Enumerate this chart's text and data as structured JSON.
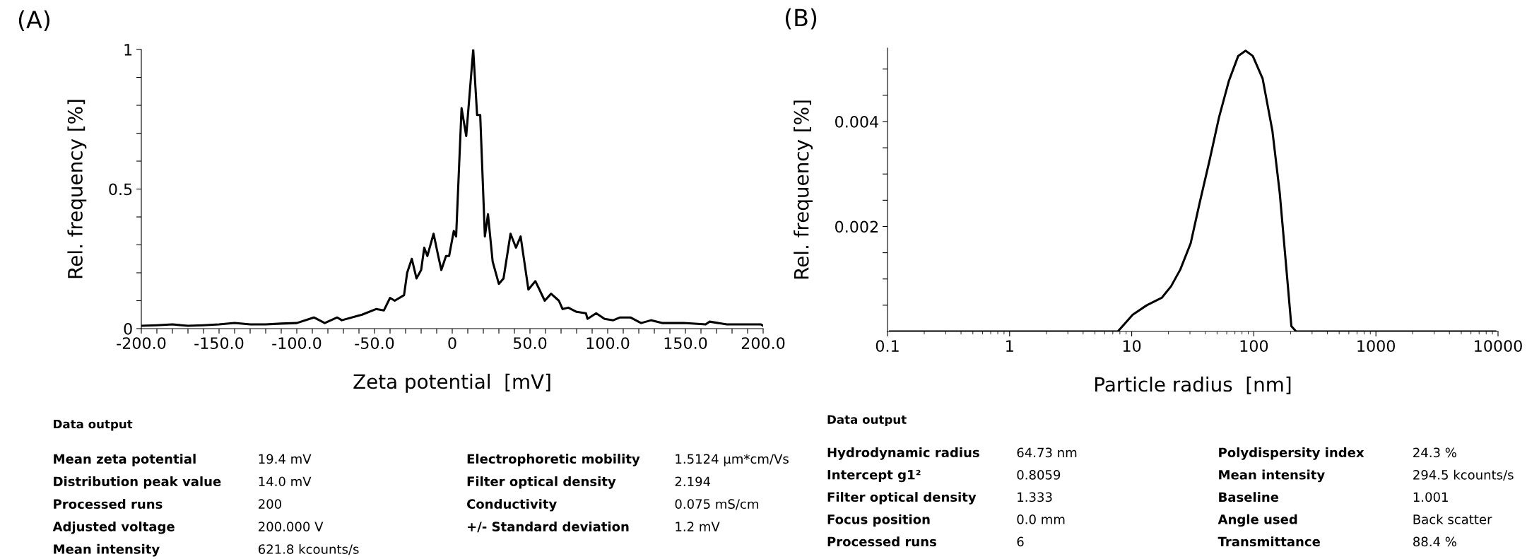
{
  "chart_data": [
    {
      "type": "line",
      "title": "(A)",
      "xlabel": "Zeta potential  [mV]",
      "ylabel": "Rel. frequency [%]",
      "series": [
        {
          "color": "#000000",
          "x": [
            -200,
            -190,
            -180,
            -170,
            -160,
            -150,
            -140,
            -130,
            -120,
            -110,
            -100,
            -89,
            -82,
            -74,
            -71,
            -58,
            -49,
            -44,
            -40,
            -37,
            -31,
            -29,
            -26,
            -23,
            -20,
            -18,
            -16,
            -14,
            -12,
            -9,
            -7,
            -4,
            -2,
            1,
            2.5,
            6,
            9,
            13.5,
            16,
            18,
            21,
            23,
            26,
            30,
            33,
            37.5,
            41,
            44,
            49,
            53.5,
            59.5,
            63.6,
            68.6,
            71,
            74.7,
            80,
            86,
            87,
            92.6,
            98,
            103.6,
            108,
            114.6,
            121.5,
            128,
            135,
            149,
            163,
            165.6,
            176.6,
            190,
            198.6,
            200
          ],
          "values": [
            0.01,
            0.012,
            0.015,
            0.01,
            0.012,
            0.015,
            0.02,
            0.015,
            0.015,
            0.018,
            0.02,
            0.04,
            0.02,
            0.04,
            0.03,
            0.05,
            0.07,
            0.065,
            0.11,
            0.1,
            0.12,
            0.2,
            0.25,
            0.18,
            0.21,
            0.29,
            0.26,
            0.3,
            0.34,
            0.26,
            0.21,
            0.26,
            0.26,
            0.35,
            0.33,
            0.79,
            0.69,
            1.0,
            0.765,
            0.765,
            0.33,
            0.41,
            0.24,
            0.16,
            0.18,
            0.34,
            0.29,
            0.33,
            0.14,
            0.17,
            0.1,
            0.125,
            0.1,
            0.07,
            0.075,
            0.06,
            0.055,
            0.035,
            0.055,
            0.035,
            0.03,
            0.04,
            0.04,
            0.02,
            0.03,
            0.02,
            0.02,
            0.015,
            0.025,
            0.015,
            0.015,
            0.015,
            0.01
          ]
        }
      ],
      "xlim": [
        -200,
        200
      ],
      "ylim": [
        0,
        1
      ],
      "xticks": [
        {
          "value": -200,
          "label": "-200.0"
        },
        {
          "value": -190,
          "label": null
        },
        {
          "value": -180,
          "label": null
        },
        {
          "value": -170,
          "label": null
        },
        {
          "value": -160,
          "label": null
        },
        {
          "value": -150,
          "label": "-150.0"
        },
        {
          "value": -140,
          "label": null
        },
        {
          "value": -130,
          "label": null
        },
        {
          "value": -120,
          "label": null
        },
        {
          "value": -110,
          "label": null
        },
        {
          "value": -100,
          "label": "-100.0"
        },
        {
          "value": -90,
          "label": null
        },
        {
          "value": -80,
          "label": null
        },
        {
          "value": -70,
          "label": null
        },
        {
          "value": -60,
          "label": null
        },
        {
          "value": -50,
          "label": "-50.0"
        },
        {
          "value": -40,
          "label": null
        },
        {
          "value": -30,
          "label": null
        },
        {
          "value": -20,
          "label": null
        },
        {
          "value": -10,
          "label": null
        },
        {
          "value": 0,
          "label": "0"
        },
        {
          "value": 10,
          "label": null
        },
        {
          "value": 20,
          "label": null
        },
        {
          "value": 30,
          "label": null
        },
        {
          "value": 40,
          "label": null
        },
        {
          "value": 50,
          "label": "50.0"
        },
        {
          "value": 60,
          "label": null
        },
        {
          "value": 70,
          "label": null
        },
        {
          "value": 80,
          "label": null
        },
        {
          "value": 90,
          "label": null
        },
        {
          "value": 100,
          "label": "100.0"
        },
        {
          "value": 110,
          "label": null
        },
        {
          "value": 120,
          "label": null
        },
        {
          "value": 130,
          "label": null
        },
        {
          "value": 140,
          "label": null
        },
        {
          "value": 150,
          "label": "150.0"
        },
        {
          "value": 160,
          "label": null
        },
        {
          "value": 170,
          "label": null
        },
        {
          "value": 180,
          "label": null
        },
        {
          "value": 190,
          "label": null
        },
        {
          "value": 200,
          "label": "200.0"
        }
      ],
      "yticks": [
        0,
        {
          "value": 0.1,
          "label": null
        },
        {
          "value": 0.2,
          "label": null
        },
        {
          "value": 0.3,
          "label": null
        },
        {
          "value": 0.4,
          "label": null
        },
        0.5,
        {
          "value": 0.6,
          "label": null
        },
        {
          "value": 0.7,
          "label": null
        },
        {
          "value": 0.8,
          "label": null
        },
        {
          "value": 0.9,
          "label": null
        },
        1
      ],
      "grid": false,
      "legend": false
    },
    {
      "type": "other",
      "title": "Data output",
      "annotations": [
        "Mean zeta potential",
        "19.4 mV",
        "Electrophoretic mobility",
        "1.5124 µm*cm/Vs",
        "Distribution peak value",
        "14.0 mV",
        "Filter optical density",
        "2.194",
        "Processed runs",
        "200",
        "Conductivity",
        "0.075 mS/cm",
        "Adjusted voltage",
        "200.000 V",
        "+/- Standard deviation",
        "1.2 mV",
        "Mean intensity",
        "621.8 kcounts/s"
      ]
    },
    {
      "type": "line",
      "title": "(B)",
      "xlabel": "Particle radius  [nm]",
      "ylabel": "Rel. frequency [%]",
      "log": "x",
      "series": [
        {
          "color": "#000000",
          "x": [
            0.105,
            7.7,
            10.2,
            13.3,
            17.6,
            21,
            25,
            30.4,
            36,
            43.5,
            52,
            62.4,
            74.5,
            85.6,
            98,
            118,
            142,
            163,
            185,
            203,
            222,
            9500
          ],
          "values": [
            0,
            0,
            0.00032,
            0.0005,
            0.00064,
            0.00086,
            0.00118,
            0.00168,
            0.00245,
            0.00327,
            0.00409,
            0.00477,
            0.00525,
            0.00535,
            0.00525,
            0.00482,
            0.00382,
            0.00264,
            0.00118,
            0.0001,
            0,
            0
          ]
        }
      ],
      "xlim": [
        0.1,
        10000
      ],
      "ylim": [
        0,
        0.0054
      ],
      "xticks": [
        0.1,
        1,
        10,
        100,
        1000,
        10000
      ],
      "yticks": [
        {
          "value": 0.0005,
          "label": null
        },
        {
          "value": 0.001,
          "label": null
        },
        {
          "value": 0.0015,
          "label": null
        },
        0.002,
        {
          "value": 0.0025,
          "label": null
        },
        {
          "value": 0.003,
          "label": null
        },
        {
          "value": 0.0035,
          "label": null
        },
        0.004,
        {
          "value": 0.0045,
          "label": null
        },
        {
          "value": 0.005,
          "label": null
        }
      ],
      "grid": false,
      "legend": false
    },
    {
      "type": "other",
      "title": "Data output",
      "annotations": [
        "Hydrodynamic radius",
        "64.73 nm",
        "Polydispersity index",
        "24.3 %",
        "Intercept g1²",
        "0.8059",
        "Mean intensity",
        "294.5 kcounts/s",
        "Filter optical density",
        "1.333",
        "Baseline",
        "1.001",
        "Focus position",
        "0.0 mm",
        "Angle used",
        "Back scatter",
        "Processed runs",
        "6",
        "Transmittance",
        "88.4 %"
      ]
    }
  ]
}
